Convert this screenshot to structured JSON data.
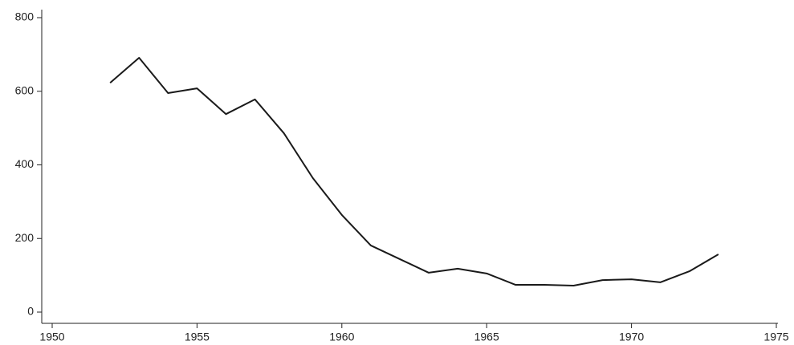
{
  "chart_data": {
    "type": "line",
    "x": [
      1952,
      1953,
      1954,
      1955,
      1956,
      1957,
      1958,
      1959,
      1960,
      1961,
      1962,
      1963,
      1964,
      1965,
      1966,
      1967,
      1968,
      1969,
      1970,
      1971,
      1972,
      1973
    ],
    "series": [
      {
        "color": "#1a1a1a",
        "values": [
          623,
          691,
          595,
          608,
          538,
          578,
          486,
          364,
          264,
          181,
          144,
          107,
          118,
          105,
          74,
          74,
          72,
          87,
          89,
          81,
          111,
          157
        ]
      }
    ],
    "xlim": [
      1950,
      1975
    ],
    "xticks": [
      1950,
      1955,
      1960,
      1965,
      1970,
      1975
    ],
    "ylim": [
      0,
      800
    ],
    "yticks": [
      0,
      200,
      400,
      600,
      800
    ]
  }
}
